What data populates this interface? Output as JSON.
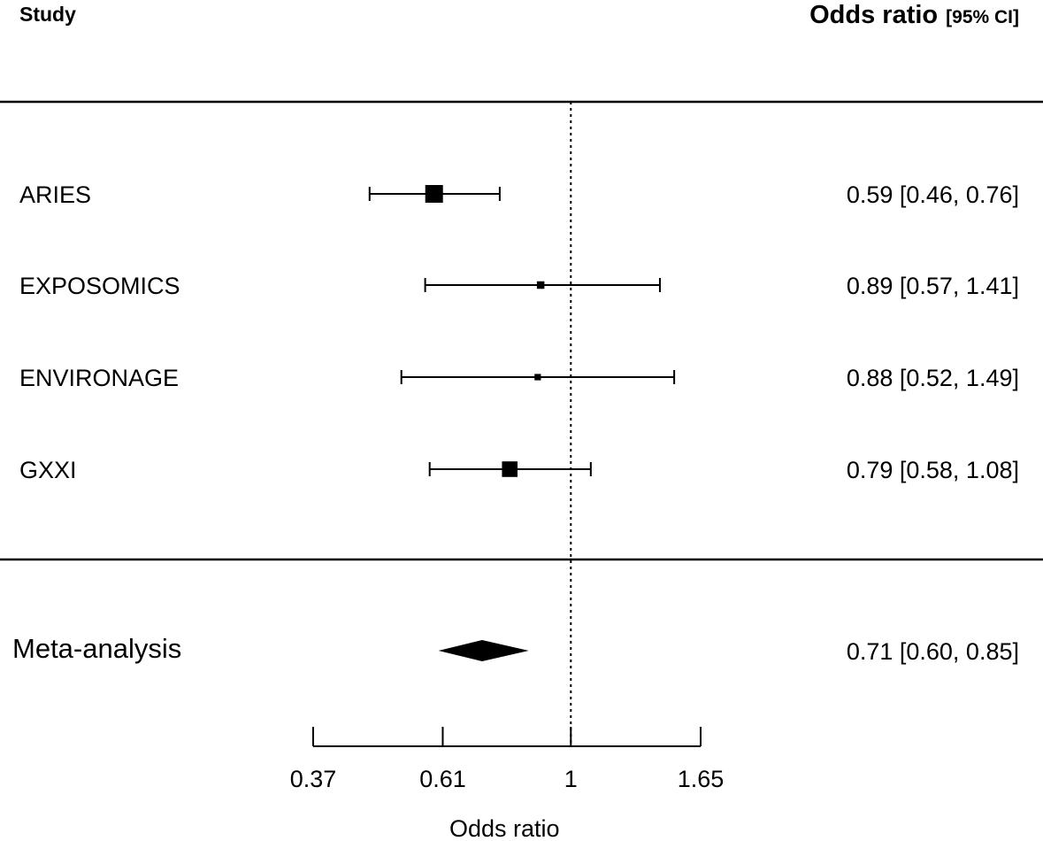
{
  "header": {
    "study_col": "Study",
    "or_col": "Odds ratio",
    "ci_col": "[95% CI]"
  },
  "chart_data": {
    "type": "forest",
    "xscale": "log",
    "xlabel": "Odds ratio",
    "xticks": [
      0.37,
      0.61,
      1,
      1.65
    ],
    "xtick_labels": [
      "0.37",
      "0.61",
      "1",
      "1.65"
    ],
    "reference_line": 1,
    "studies": [
      {
        "name": "ARIES",
        "or": 0.59,
        "lo": 0.46,
        "hi": 0.76,
        "label": "0.59 [0.46, 0.76]",
        "weight": 1.0
      },
      {
        "name": "EXPOSOMICS",
        "or": 0.89,
        "lo": 0.57,
        "hi": 1.41,
        "label": "0.89 [0.57, 1.41]",
        "weight": 0.28
      },
      {
        "name": "ENVIRONAGE",
        "or": 0.88,
        "lo": 0.52,
        "hi": 1.49,
        "label": "0.88 [0.52, 1.49]",
        "weight": 0.2
      },
      {
        "name": "GXXI",
        "or": 0.79,
        "lo": 0.58,
        "hi": 1.08,
        "label": "0.79 [0.58, 1.08]",
        "weight": 0.85
      }
    ],
    "summary": {
      "name": "Meta-analysis",
      "or": 0.71,
      "lo": 0.6,
      "hi": 0.85,
      "label": "0.71 [0.60, 0.85]"
    }
  }
}
